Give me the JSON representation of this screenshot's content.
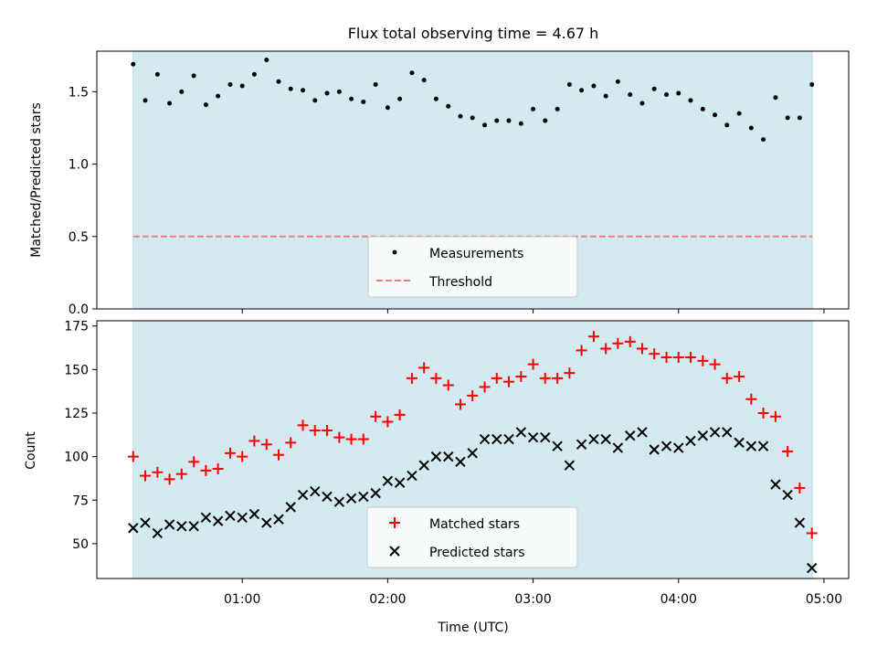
{
  "chart_data": [
    {
      "type": "scatter",
      "title": "Flux total observing time = 4.67 h",
      "ylabel": "Matched/Predicted stars",
      "xlabel": "",
      "ylim": [
        0,
        1.78
      ],
      "yticks": [
        0.0,
        0.5,
        1.0,
        1.5
      ],
      "ytick_labels": [
        "0.0",
        "0.5",
        "1.0",
        "1.5"
      ],
      "x_unit": "hours UTC",
      "xlim": [
        0.0,
        5.17
      ],
      "shaded_span": [
        0.25,
        4.92
      ],
      "shade_color": "#d3eaf0",
      "legend_position": "lower center",
      "legend": [
        "Measurements",
        "Threshold"
      ],
      "threshold": {
        "name": "Threshold",
        "value": 0.5,
        "color": "#f07b7b"
      },
      "series": [
        {
          "name": "Measurements",
          "color": "#000000",
          "x": [
            0.25,
            0.333,
            0.417,
            0.5,
            0.583,
            0.667,
            0.75,
            0.833,
            0.917,
            1.0,
            1.083,
            1.167,
            1.25,
            1.333,
            1.417,
            1.5,
            1.583,
            1.667,
            1.75,
            1.833,
            1.917,
            2.0,
            2.083,
            2.167,
            2.25,
            2.333,
            2.417,
            2.5,
            2.583,
            2.667,
            2.75,
            2.833,
            2.917,
            3.0,
            3.083,
            3.167,
            3.25,
            3.333,
            3.417,
            3.5,
            3.583,
            3.667,
            3.75,
            3.833,
            3.917,
            4.0,
            4.083,
            4.167,
            4.25,
            4.333,
            4.417,
            4.5,
            4.583,
            4.667,
            4.75,
            4.833,
            4.917
          ],
          "y": [
            1.69,
            1.44,
            1.62,
            1.42,
            1.5,
            1.61,
            1.41,
            1.47,
            1.55,
            1.54,
            1.62,
            1.72,
            1.57,
            1.52,
            1.51,
            1.44,
            1.49,
            1.5,
            1.45,
            1.43,
            1.55,
            1.39,
            1.45,
            1.63,
            1.58,
            1.45,
            1.4,
            1.33,
            1.32,
            1.27,
            1.3,
            1.3,
            1.28,
            1.38,
            1.3,
            1.38,
            1.55,
            1.51,
            1.54,
            1.47,
            1.57,
            1.48,
            1.42,
            1.52,
            1.48,
            1.49,
            1.44,
            1.38,
            1.34,
            1.27,
            1.35,
            1.25,
            1.17,
            1.46,
            1.32,
            1.32,
            1.55
          ]
        }
      ]
    },
    {
      "type": "scatter",
      "title": "",
      "xlabel": "Time (UTC)",
      "ylabel": "Count",
      "ylim": [
        30,
        178
      ],
      "yticks": [
        50,
        75,
        100,
        125,
        150,
        175
      ],
      "ytick_labels": [
        "50",
        "75",
        "100",
        "125",
        "150",
        "175"
      ],
      "x_unit": "hours UTC",
      "xlim": [
        0.0,
        5.17
      ],
      "xticks": [
        1,
        2,
        3,
        4,
        5
      ],
      "xtick_labels": [
        "01:00",
        "02:00",
        "03:00",
        "04:00",
        "05:00"
      ],
      "shaded_span": [
        0.25,
        4.92
      ],
      "shade_color": "#d3eaf0",
      "legend_position": "lower center",
      "legend": [
        "Matched stars",
        "Predicted stars"
      ],
      "series": [
        {
          "name": "Matched stars",
          "marker": "plus",
          "color": "#ff0000",
          "x": [
            0.25,
            0.333,
            0.417,
            0.5,
            0.583,
            0.667,
            0.75,
            0.833,
            0.917,
            1.0,
            1.083,
            1.167,
            1.25,
            1.333,
            1.417,
            1.5,
            1.583,
            1.667,
            1.75,
            1.833,
            1.917,
            2.0,
            2.083,
            2.167,
            2.25,
            2.333,
            2.417,
            2.5,
            2.583,
            2.667,
            2.75,
            2.833,
            2.917,
            3.0,
            3.083,
            3.167,
            3.25,
            3.333,
            3.417,
            3.5,
            3.583,
            3.667,
            3.75,
            3.833,
            3.917,
            4.0,
            4.083,
            4.167,
            4.25,
            4.333,
            4.417,
            4.5,
            4.583,
            4.667,
            4.75,
            4.833,
            4.917
          ],
          "y": [
            100,
            89,
            91,
            87,
            90,
            97,
            92,
            93,
            102,
            100,
            109,
            107,
            101,
            108,
            118,
            115,
            115,
            111,
            110,
            110,
            123,
            120,
            124,
            145,
            151,
            145,
            141,
            130,
            135,
            140,
            145,
            143,
            146,
            153,
            145,
            145,
            148,
            161,
            169,
            162,
            165,
            166,
            162,
            159,
            157,
            157,
            157,
            155,
            153,
            145,
            146,
            133,
            125,
            123,
            103,
            82,
            56
          ]
        },
        {
          "name": "Predicted stars",
          "marker": "x",
          "color": "#000000",
          "x": [
            0.25,
            0.333,
            0.417,
            0.5,
            0.583,
            0.667,
            0.75,
            0.833,
            0.917,
            1.0,
            1.083,
            1.167,
            1.25,
            1.333,
            1.417,
            1.5,
            1.583,
            1.667,
            1.75,
            1.833,
            1.917,
            2.0,
            2.083,
            2.167,
            2.25,
            2.333,
            2.417,
            2.5,
            2.583,
            2.667,
            2.75,
            2.833,
            2.917,
            3.0,
            3.083,
            3.167,
            3.25,
            3.333,
            3.417,
            3.5,
            3.583,
            3.667,
            3.75,
            3.833,
            3.917,
            4.0,
            4.083,
            4.167,
            4.25,
            4.333,
            4.417,
            4.5,
            4.583,
            4.667,
            4.75,
            4.833,
            4.917
          ],
          "y": [
            59,
            62,
            56,
            61,
            60,
            60,
            65,
            63,
            66,
            65,
            67,
            62,
            64,
            71,
            78,
            80,
            77,
            74,
            76,
            77,
            79,
            86,
            85,
            89,
            95,
            100,
            100,
            97,
            102,
            110,
            110,
            110,
            114,
            111,
            111,
            106,
            95,
            107,
            110,
            110,
            105,
            112,
            114,
            104,
            106,
            105,
            109,
            112,
            114,
            114,
            108,
            106,
            106,
            84,
            78,
            62,
            36
          ]
        }
      ]
    }
  ]
}
